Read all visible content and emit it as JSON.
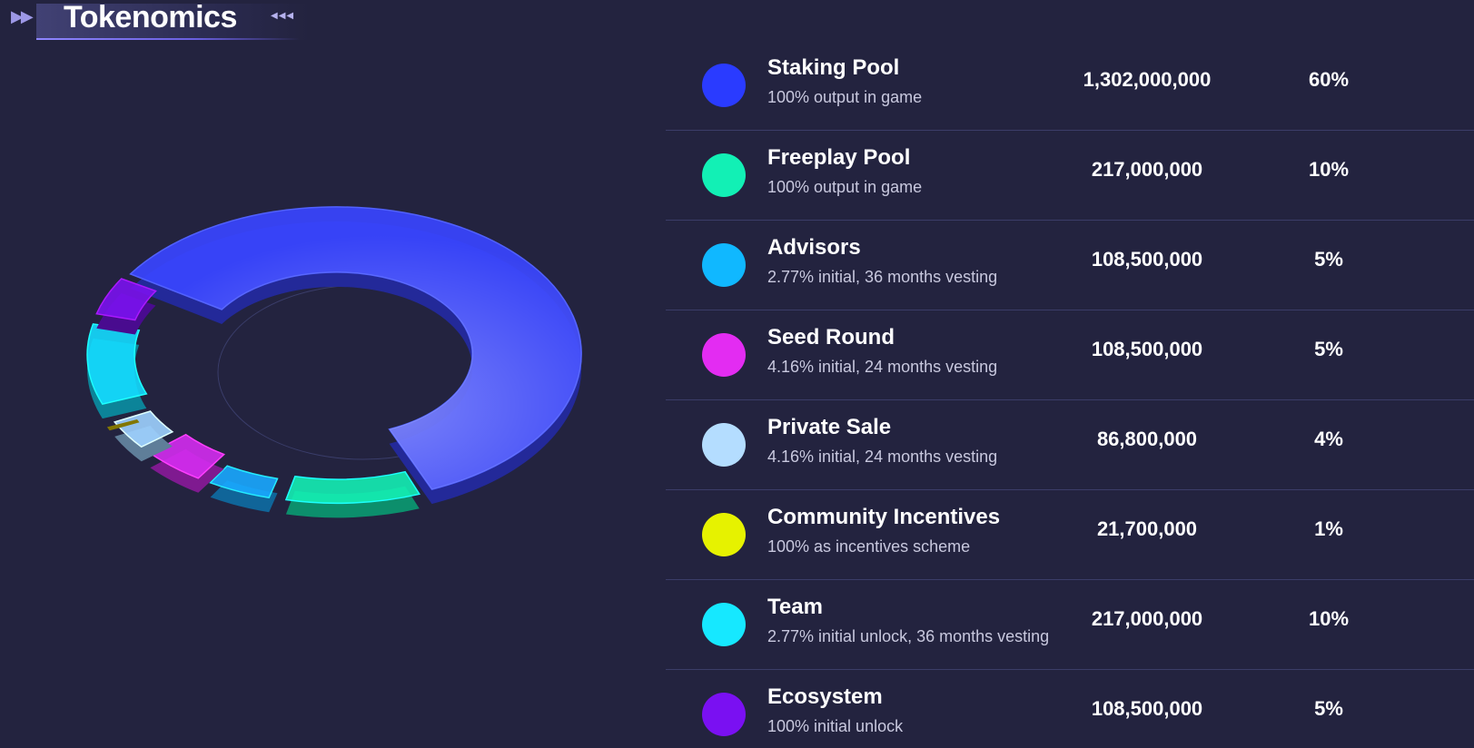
{
  "header": {
    "title": "Tokenomics",
    "arrows_left": "▶▶",
    "arrows_right": "◀◀◀"
  },
  "allocations": [
    {
      "name": "Staking Pool",
      "desc": "100% output in game",
      "amount": "1,302,000,000",
      "percent": "60%",
      "color": "#2a3bff"
    },
    {
      "name": "Freeplay Pool",
      "desc": "100% output in game",
      "amount": "217,000,000",
      "percent": "10%",
      "color": "#12f0b5"
    },
    {
      "name": "Advisors",
      "desc": "2.77% initial, 36 months vesting",
      "amount": "108,500,000",
      "percent": "5%",
      "color": "#10b8ff"
    },
    {
      "name": "Seed Round",
      "desc": "4.16% initial, 24 months vesting",
      "amount": "108,500,000",
      "percent": "5%",
      "color": "#e32cf2"
    },
    {
      "name": "Private Sale",
      "desc": "4.16% initial, 24 months vesting",
      "amount": "86,800,000",
      "percent": "4%",
      "color": "#b4ddff"
    },
    {
      "name": "Community Incentives",
      "desc": "100% as incentives scheme",
      "amount": "21,700,000",
      "percent": "1%",
      "color": "#e6f200"
    },
    {
      "name": "Team",
      "desc": "2.77% initial unlock, 36 months vesting",
      "amount": "217,000,000",
      "percent": "10%",
      "color": "#16e8ff"
    },
    {
      "name": "Ecosystem",
      "desc": "100% initial unlock",
      "amount": "108,500,000",
      "percent": "5%",
      "color": "#7a10f2"
    }
  ],
  "chart_data": {
    "type": "pie",
    "style": "3d-donut-exploded",
    "categories": [
      "Staking Pool",
      "Freeplay Pool",
      "Advisors",
      "Seed Round",
      "Private Sale",
      "Community Incentives",
      "Team",
      "Ecosystem"
    ],
    "values": [
      60,
      10,
      5,
      5,
      4,
      1,
      10,
      5
    ],
    "colors": [
      "#3a45ff",
      "#14eeb4",
      "#1aa8ff",
      "#d42cf0",
      "#9fd2ff",
      "#d8c400",
      "#14dcff",
      "#7a12ee"
    ]
  }
}
